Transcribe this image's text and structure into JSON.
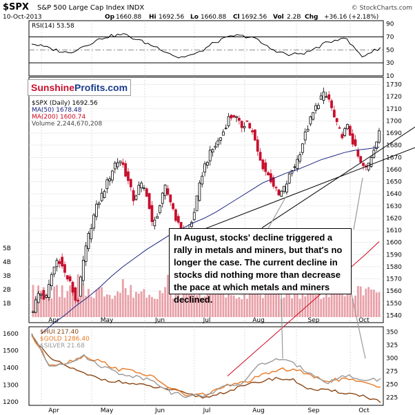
{
  "header": {
    "symbol": "$SPX",
    "name": "S&P 500 Large Cap Index INDX",
    "date": "10-Oct-2013",
    "op_label": "Op",
    "op": "1660.88",
    "hi_label": "Hi",
    "hi": "1692.56",
    "lo_label": "Lo",
    "lo": "1660.88",
    "cl_label": "Cl",
    "cl": "1692.56",
    "vol_label": "Vol",
    "vol": "2.2B",
    "chg_label": "Chg",
    "chg": "+36.16 (+2.18%)",
    "credit": "© StockCharts.com"
  },
  "logo": {
    "part1": "Sunshine",
    "part2": "Profits.com"
  },
  "annotation": "In August, stocks' decline triggered a rally in metals and miners, but that's no longer the case. The current decline in stocks did nothing more than decrease the pace at which metals and miners declined.",
  "colors": {
    "up": "#000000",
    "down": "#c8102e",
    "ma50": "#1a237e",
    "ma200": "#d0021b",
    "volume": "#e8a0a8",
    "hui": "#8b4513",
    "gold": "#e87722",
    "silver": "#999999"
  },
  "chart_data": [
    {
      "type": "line",
      "panel": "rsi",
      "legend": [
        "RSI(14) 53.58"
      ],
      "yticks": [
        10,
        30,
        50,
        70,
        90
      ],
      "ylim": [
        10,
        95
      ],
      "guides": [
        30,
        70
      ],
      "x": [
        "2013-04-01",
        "2013-04-10",
        "2013-04-19",
        "2013-04-30",
        "2013-05-09",
        "2013-05-20",
        "2013-05-30",
        "2013-06-10",
        "2013-06-20",
        "2013-07-01",
        "2013-07-11",
        "2013-07-22",
        "2013-08-01",
        "2013-08-12",
        "2013-08-22",
        "2013-09-03",
        "2013-09-12",
        "2013-09-23",
        "2013-10-02",
        "2013-10-10"
      ],
      "values": [
        60,
        52,
        45,
        58,
        70,
        74,
        63,
        52,
        38,
        44,
        62,
        72,
        70,
        52,
        42,
        46,
        60,
        70,
        40,
        53.58
      ]
    },
    {
      "type": "candlestick",
      "panel": "price",
      "title": "$SPX",
      "legend": [
        "$SPX (Daily) 1692.56",
        "MA(50) 1678.48",
        "MA(200) 1600.74",
        "Volume 2,244,670,208"
      ],
      "yticks": [
        1540,
        1550,
        1560,
        1570,
        1580,
        1590,
        1600,
        1610,
        1620,
        1630,
        1640,
        1650,
        1660,
        1670,
        1680,
        1690,
        1700,
        1710,
        1720,
        1730
      ],
      "ylim": [
        1534,
        1736
      ],
      "volume_ticks": [
        "1B",
        "2B",
        "3B",
        "4B",
        "5B"
      ],
      "xticks": [
        "Apr",
        "May",
        "Jun",
        "Jul",
        "Aug",
        "Sep",
        "Oct"
      ],
      "close_path": [
        1545,
        1560,
        1552,
        1575,
        1588,
        1575,
        1565,
        1548,
        1585,
        1610,
        1628,
        1640,
        1652,
        1665,
        1668,
        1652,
        1635,
        1648,
        1642,
        1612,
        1628,
        1645,
        1632,
        1615,
        1606,
        1612,
        1635,
        1660,
        1672,
        1680,
        1688,
        1702,
        1705,
        1695,
        1700,
        1688,
        1668,
        1658,
        1650,
        1638,
        1645,
        1658,
        1668,
        1685,
        1700,
        1712,
        1722,
        1718,
        1700,
        1688,
        1695,
        1680,
        1665,
        1660,
        1675,
        1692.56
      ],
      "ma50_path": [
        1525,
        1533,
        1540,
        1548,
        1555,
        1563,
        1572,
        1580,
        1587,
        1594,
        1600,
        1606,
        1611,
        1616,
        1620,
        1625,
        1631,
        1637,
        1643,
        1649,
        1653,
        1657,
        1660,
        1664,
        1668,
        1671,
        1674,
        1676,
        1677,
        1678.48
      ],
      "ma200_path": [
        1490,
        1500,
        1510,
        1520,
        1530,
        1540,
        1550,
        1560,
        1570,
        1580,
        1590,
        1600.74
      ],
      "trendline": [
        1602,
        1668
      ]
    },
    {
      "type": "line",
      "panel": "metals",
      "legend": [
        "$HUI 217.40",
        "$GOLD 1286.40",
        "$SILVER 21.68"
      ],
      "yticks_left": [
        1200,
        1300,
        1400,
        1500,
        1600
      ],
      "yticks_right": [
        225,
        250,
        275,
        300,
        325,
        350
      ],
      "series": [
        {
          "name": "$HUI",
          "values": [
            345,
            300,
            285,
            270,
            260,
            255,
            250,
            245,
            240,
            230,
            225,
            235,
            245,
            255,
            262,
            258,
            240,
            238,
            234,
            228,
            217.4
          ]
        },
        {
          "name": "$GOLD",
          "values": [
            1590,
            1420,
            1430,
            1470,
            1435,
            1390,
            1380,
            1340,
            1280,
            1235,
            1245,
            1290,
            1310,
            1345,
            1385,
            1395,
            1350,
            1325,
            1335,
            1310,
            1286.4
          ]
        },
        {
          "name": "$SILVER",
          "values": [
            28,
            23.5,
            24,
            24.8,
            23.5,
            22.5,
            22,
            21.5,
            19.8,
            19.2,
            19.5,
            20.5,
            21,
            23.5,
            24.5,
            23.8,
            22.5,
            21.2,
            22.2,
            21.5,
            21.68
          ]
        }
      ]
    }
  ]
}
